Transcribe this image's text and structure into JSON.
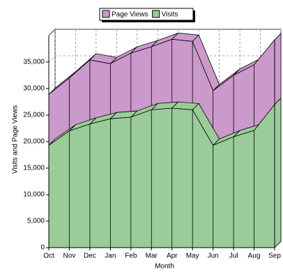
{
  "chart_data": {
    "type": "area3d",
    "x_label": "Month",
    "y_label": "Visits and Page Views",
    "categories": [
      "Oct",
      "Nov",
      "Dec",
      "Jan",
      "Feb",
      "Mar",
      "Apr",
      "May",
      "Jun",
      "Jul",
      "Aug",
      "Sep"
    ],
    "series": [
      {
        "name": "Page Views",
        "color": "#cc99cc",
        "values": [
          28900,
          32000,
          35400,
          34700,
          36700,
          37900,
          39300,
          38900,
          29600,
          32500,
          34500,
          39200
        ]
      },
      {
        "name": "Visits",
        "color": "#99cc99",
        "values": [
          19300,
          22000,
          23300,
          24300,
          24600,
          26000,
          26300,
          26000,
          19300,
          20900,
          22100,
          27000
        ]
      }
    ],
    "ylim": [
      0,
      40000
    ],
    "yticks": [
      0,
      {
        "value": 5000,
        "label": "5,000"
      },
      {
        "value": 10000,
        "label": "10,000"
      },
      {
        "value": 15000,
        "label": "15,000"
      },
      {
        "value": 20000,
        "label": "20,000"
      },
      {
        "value": 25000,
        "label": "25,000"
      },
      {
        "value": 30000,
        "label": "30,000"
      },
      {
        "value": 35000,
        "label": "35,000"
      }
    ],
    "grid": true,
    "legend": "top"
  }
}
